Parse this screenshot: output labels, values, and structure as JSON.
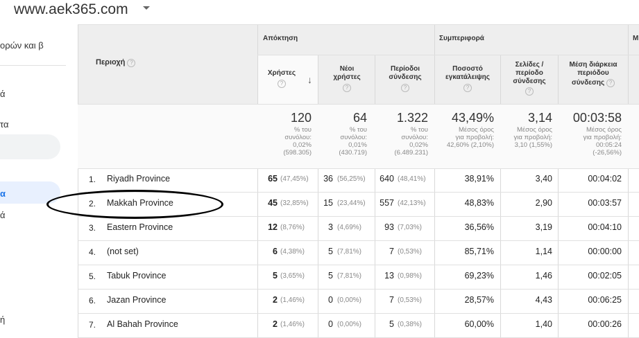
{
  "site": {
    "title": "www.aek365.com"
  },
  "sidebar": {
    "items": [
      "ορών και β",
      "ά",
      "τα",
      "α",
      "ά",
      "ή"
    ]
  },
  "header": {
    "region_label": "Περιοχή",
    "group_acquisition": "Απόκτηση",
    "group_behavior": "Συμπεριφορά",
    "group_cut": "Μ",
    "columns": {
      "users": "Χρήστες",
      "new_users_1": "Νέοι",
      "new_users_2": "χρήστες",
      "sessions_1": "Περίοδοι",
      "sessions_2": "σύνδεσης",
      "bounce_1": "Ποσοστό",
      "bounce_2": "εγκατάλειψης",
      "pages_1": "Σελίδες /",
      "pages_2": "περίοδο",
      "pages_3": "σύνδεσης",
      "duration_1": "Μέση διάρκεια",
      "duration_2": "περιόδου",
      "duration_3": "σύνδεσης"
    },
    "help_icon": "?"
  },
  "totals": {
    "users": "120",
    "users_s1": "% του",
    "users_s2": "συνόλου:",
    "users_s3": "0,02%",
    "users_s4": "(598.305)",
    "new_users": "64",
    "new_s1": "% του",
    "new_s2": "συνόλου:",
    "new_s3": "0,01%",
    "new_s4": "(430.719)",
    "sessions": "1.322",
    "ses_s1": "% του",
    "ses_s2": "συνόλου:",
    "ses_s3": "0,02%",
    "ses_s4": "(6.489.231)",
    "bounce": "43,49%",
    "bounce_s1": "Μέσος όρος",
    "bounce_s2": "για προβολή:",
    "bounce_s3": "42,60% (2,10%)",
    "pages": "3,14",
    "pages_s1": "Μέσος όρος",
    "pages_s2": "για προβολή:",
    "pages_s3": "3,10 (1,55%)",
    "duration": "00:03:58",
    "dur_s1": "Μέσος όρος",
    "dur_s2": "για προβολή:",
    "dur_s3": "00:05:24",
    "dur_s4": "(-26,56%)"
  },
  "rows": [
    {
      "n": "1.",
      "region": "Riyadh Province",
      "users": "65",
      "users_pct": "(47,45%)",
      "new": "36",
      "new_pct": "(56,25%)",
      "ses": "640",
      "ses_pct": "(48,41%)",
      "bounce": "38,91%",
      "pages": "3,40",
      "dur": "00:04:02"
    },
    {
      "n": "2.",
      "region": "Makkah Province",
      "users": "45",
      "users_pct": "(32,85%)",
      "new": "15",
      "new_pct": "(23,44%)",
      "ses": "557",
      "ses_pct": "(42,13%)",
      "bounce": "48,83%",
      "pages": "2,90",
      "dur": "00:03:57"
    },
    {
      "n": "3.",
      "region": "Eastern Province",
      "users": "12",
      "users_pct": "(8,76%)",
      "new": "3",
      "new_pct": "(4,69%)",
      "ses": "93",
      "ses_pct": "(7,03%)",
      "bounce": "36,56%",
      "pages": "3,19",
      "dur": "00:04:10"
    },
    {
      "n": "4.",
      "region": "(not set)",
      "users": "6",
      "users_pct": "(4,38%)",
      "new": "5",
      "new_pct": "(7,81%)",
      "ses": "7",
      "ses_pct": "(0,53%)",
      "bounce": "85,71%",
      "pages": "1,14",
      "dur": "00:00:00"
    },
    {
      "n": "5.",
      "region": "Tabuk Province",
      "users": "5",
      "users_pct": "(3,65%)",
      "new": "5",
      "new_pct": "(7,81%)",
      "ses": "13",
      "ses_pct": "(0,98%)",
      "bounce": "69,23%",
      "pages": "1,46",
      "dur": "00:02:05"
    },
    {
      "n": "6.",
      "region": "Jazan Province",
      "users": "2",
      "users_pct": "(1,46%)",
      "new": "0",
      "new_pct": "(0,00%)",
      "ses": "7",
      "ses_pct": "(0,53%)",
      "bounce": "28,57%",
      "pages": "4,43",
      "dur": "00:06:25"
    },
    {
      "n": "7.",
      "region": "Al Bahah Province",
      "users": "2",
      "users_pct": "(1,46%)",
      "new": "0",
      "new_pct": "(0,00%)",
      "ses": "5",
      "ses_pct": "(0,38%)",
      "bounce": "60,00%",
      "pages": "1,40",
      "dur": "00:00:26"
    }
  ]
}
